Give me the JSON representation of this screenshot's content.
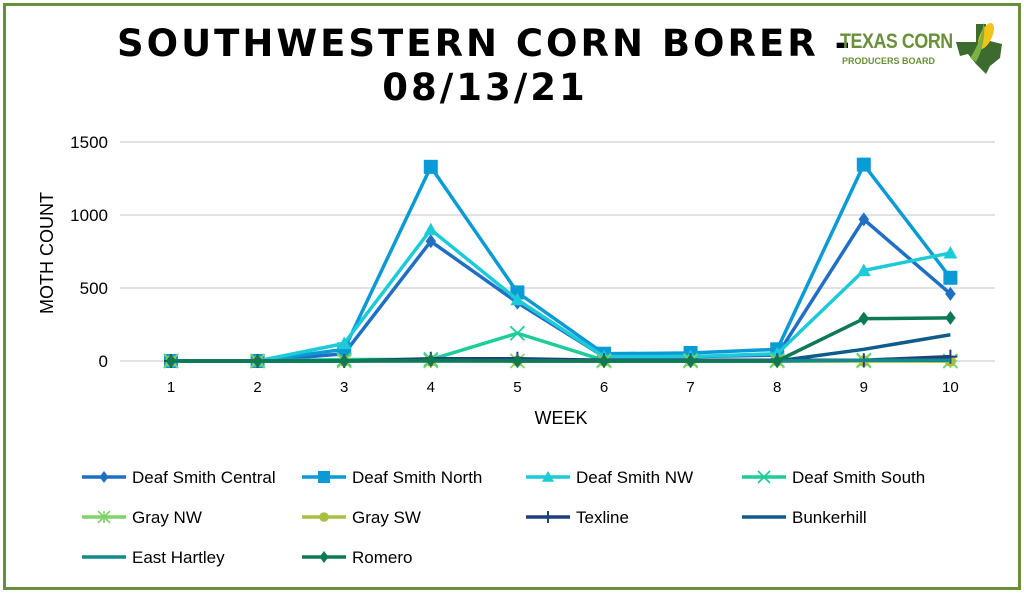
{
  "header": {
    "title_line1": "SOUTHWESTERN CORN BORER -",
    "title_line2": "08/13/21"
  },
  "logo": {
    "line1": "TEXAS CORN",
    "line2": "PRODUCERS BOARD"
  },
  "colors": {
    "border": "#6a8f3a"
  },
  "chart_data": {
    "type": "line",
    "title": "SOUTHWESTERN CORN BORER - 08/13/21",
    "xlabel": "WEEK",
    "ylabel": "MOTH COUNT",
    "x": [
      1,
      2,
      3,
      4,
      5,
      6,
      7,
      8,
      9,
      10
    ],
    "ylim": [
      0,
      1500
    ],
    "yticks": [
      0,
      500,
      1000,
      1500
    ],
    "grid": true,
    "legend": "bottom",
    "series": [
      {
        "name": "Deaf Smith Central",
        "color": "#1f6fc5",
        "marker": "diamond",
        "values": [
          0,
          0,
          50,
          820,
          400,
          30,
          30,
          40,
          970,
          460
        ]
      },
      {
        "name": "Deaf Smith North",
        "color": "#0a9ad6",
        "marker": "square",
        "values": [
          0,
          0,
          80,
          1330,
          470,
          50,
          55,
          80,
          1345,
          570
        ]
      },
      {
        "name": "Deaf Smith NW",
        "color": "#1ccad8",
        "marker": "triangle",
        "values": [
          0,
          0,
          120,
          900,
          420,
          30,
          30,
          50,
          620,
          740
        ]
      },
      {
        "name": "Deaf Smith South",
        "color": "#1ecc9a",
        "marker": "x",
        "values": [
          0,
          0,
          10,
          10,
          190,
          5,
          5,
          5,
          5,
          0
        ]
      },
      {
        "name": "Gray NW",
        "color": "#7ed36a",
        "marker": "star",
        "values": [
          0,
          0,
          0,
          0,
          0,
          0,
          0,
          0,
          0,
          0
        ]
      },
      {
        "name": "Gray SW",
        "color": "#a8c040",
        "marker": "circle",
        "values": [
          0,
          0,
          0,
          0,
          0,
          0,
          0,
          0,
          0,
          0
        ]
      },
      {
        "name": "Texline",
        "color": "#1d3f7a",
        "marker": "plus",
        "values": [
          0,
          0,
          0,
          15,
          15,
          5,
          5,
          5,
          5,
          30
        ]
      },
      {
        "name": "Bunkerhill",
        "color": "#0d5c8a",
        "marker": "none",
        "values": [
          0,
          0,
          0,
          5,
          5,
          0,
          0,
          0,
          80,
          180
        ]
      },
      {
        "name": "East Hartley",
        "color": "#128a8a",
        "marker": "none",
        "values": [
          0,
          0,
          0,
          0,
          0,
          0,
          0,
          0,
          5,
          5
        ]
      },
      {
        "name": "Romero",
        "color": "#0e7a55",
        "marker": "diamond",
        "values": [
          0,
          0,
          0,
          5,
          0,
          0,
          0,
          0,
          290,
          295
        ]
      }
    ]
  }
}
